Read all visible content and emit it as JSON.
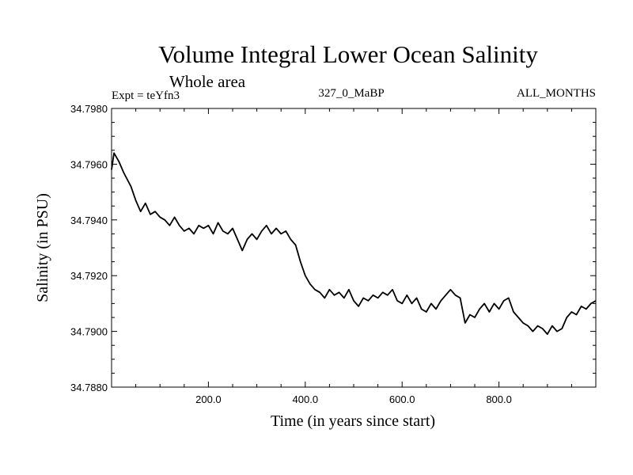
{
  "chart_data": {
    "type": "line",
    "title": "Volume Integral Lower Ocean Salinity",
    "subtitle": "Whole area",
    "experiment": "Expt = teYfn3",
    "run_label": "327_0_MaBP",
    "months_label": "ALL_MONTHS",
    "xlabel": "Time (in years since start)",
    "ylabel": "Salinity (in PSU)",
    "xlim": [
      0,
      1000
    ],
    "ylim": [
      34.788,
      34.798
    ],
    "xticks": [
      200,
      400,
      600,
      800
    ],
    "xtick_labels": [
      "200.0",
      "400.0",
      "600.0",
      "800.0"
    ],
    "yticks": [
      34.788,
      34.79,
      34.792,
      34.794,
      34.796,
      34.798
    ],
    "ytick_labels": [
      "34.7880",
      "34.7900",
      "34.7920",
      "34.7940",
      "34.7960",
      "34.7980"
    ],
    "grid": false,
    "series": [
      {
        "name": "Salinity",
        "color": "#000000",
        "x": [
          0,
          5,
          15,
          25,
          40,
          50,
          60,
          70,
          80,
          90,
          100,
          110,
          120,
          130,
          140,
          150,
          160,
          170,
          180,
          190,
          200,
          210,
          220,
          230,
          240,
          250,
          260,
          270,
          280,
          290,
          300,
          310,
          320,
          330,
          340,
          350,
          360,
          370,
          380,
          390,
          400,
          410,
          420,
          430,
          440,
          450,
          460,
          470,
          480,
          490,
          500,
          510,
          520,
          530,
          540,
          550,
          560,
          570,
          580,
          590,
          600,
          610,
          620,
          630,
          640,
          650,
          660,
          670,
          680,
          690,
          700,
          710,
          720,
          730,
          740,
          750,
          760,
          770,
          780,
          790,
          800,
          810,
          820,
          830,
          840,
          850,
          860,
          870,
          880,
          890,
          900,
          910,
          920,
          930,
          940,
          950,
          960,
          970,
          980,
          990,
          1000
        ],
        "y": [
          34.7958,
          34.7964,
          34.7961,
          34.7957,
          34.7952,
          34.7947,
          34.7943,
          34.7946,
          34.7942,
          34.7943,
          34.7941,
          34.794,
          34.7938,
          34.7941,
          34.7938,
          34.7936,
          34.7937,
          34.7935,
          34.7938,
          34.7937,
          34.7938,
          34.7935,
          34.7939,
          34.7936,
          34.7935,
          34.7937,
          34.7933,
          34.7929,
          34.7933,
          34.7935,
          34.7933,
          34.7936,
          34.7938,
          34.7935,
          34.7937,
          34.7935,
          34.7936,
          34.7933,
          34.7931,
          34.7925,
          34.792,
          34.7917,
          34.7915,
          34.7914,
          34.7912,
          34.7915,
          34.7913,
          34.7914,
          34.7912,
          34.7915,
          34.7911,
          34.7909,
          34.7912,
          34.7911,
          34.7913,
          34.7912,
          34.7914,
          34.7913,
          34.7915,
          34.7911,
          34.791,
          34.7913,
          34.791,
          34.7912,
          34.7908,
          34.7907,
          34.791,
          34.7908,
          34.7911,
          34.7913,
          34.7915,
          34.7913,
          34.7912,
          34.7903,
          34.7906,
          34.7905,
          34.7908,
          34.791,
          34.7907,
          34.791,
          34.7908,
          34.7911,
          34.7912,
          34.7907,
          34.7905,
          34.7903,
          34.7902,
          34.79,
          34.7902,
          34.7901,
          34.7899,
          34.7902,
          34.79,
          34.7901,
          34.7905,
          34.7907,
          34.7906,
          34.7909,
          34.7908,
          34.791,
          34.7911
        ]
      }
    ]
  }
}
